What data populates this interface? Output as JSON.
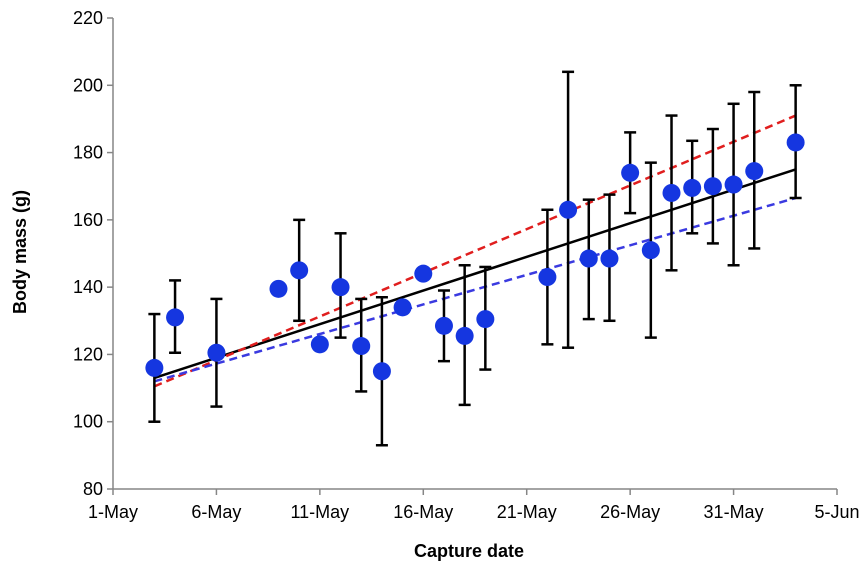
{
  "chart_data": {
    "type": "scatter",
    "title": "",
    "xlabel": "Capture date",
    "ylabel": "Body mass (g)",
    "x_ticks": [
      "1-May",
      "6-May",
      "11-May",
      "16-May",
      "21-May",
      "26-May",
      "31-May",
      "5-Jun"
    ],
    "x_tick_dates": [
      "2000-05-01",
      "2000-05-06",
      "2000-05-11",
      "2000-05-16",
      "2000-05-21",
      "2000-05-26",
      "2000-05-31",
      "2000-06-05"
    ],
    "xlim": [
      "2000-05-01",
      "2000-06-05"
    ],
    "y_ticks": [
      80,
      100,
      120,
      140,
      160,
      180,
      200,
      220
    ],
    "ylim": [
      80,
      220
    ],
    "grid": false,
    "legend": "none",
    "points": [
      {
        "date": "2000-05-03",
        "mean": 116,
        "lower": 100,
        "upper": 132
      },
      {
        "date": "2000-05-04",
        "mean": 131,
        "lower": 120.5,
        "upper": 142
      },
      {
        "date": "2000-05-06",
        "mean": 120.5,
        "lower": 104.5,
        "upper": 136.5
      },
      {
        "date": "2000-05-09",
        "mean": 139.5
      },
      {
        "date": "2000-05-10",
        "mean": 145,
        "lower": 130,
        "upper": 160
      },
      {
        "date": "2000-05-11",
        "mean": 123
      },
      {
        "date": "2000-05-12",
        "mean": 140,
        "lower": 125,
        "upper": 156
      },
      {
        "date": "2000-05-13",
        "mean": 122.5,
        "lower": 109,
        "upper": 136.5
      },
      {
        "date": "2000-05-14",
        "mean": 115,
        "lower": 93,
        "upper": 137
      },
      {
        "date": "2000-05-15",
        "mean": 134
      },
      {
        "date": "2000-05-16",
        "mean": 144
      },
      {
        "date": "2000-05-17",
        "mean": 128.5,
        "lower": 118,
        "upper": 139
      },
      {
        "date": "2000-05-18",
        "mean": 125.5,
        "lower": 105,
        "upper": 146.5
      },
      {
        "date": "2000-05-19",
        "mean": 130.5,
        "lower": 115.5,
        "upper": 146
      },
      {
        "date": "2000-05-22",
        "mean": 143,
        "lower": 123,
        "upper": 163
      },
      {
        "date": "2000-05-23",
        "mean": 163,
        "lower": 122,
        "upper": 204
      },
      {
        "date": "2000-05-24",
        "mean": 148.5,
        "lower": 130.5,
        "upper": 166
      },
      {
        "date": "2000-05-25",
        "mean": 148.5,
        "lower": 130,
        "upper": 167.5
      },
      {
        "date": "2000-05-26",
        "mean": 174,
        "lower": 162,
        "upper": 186
      },
      {
        "date": "2000-05-27",
        "mean": 151,
        "lower": 125,
        "upper": 177
      },
      {
        "date": "2000-05-28",
        "mean": 168,
        "lower": 145,
        "upper": 191
      },
      {
        "date": "2000-05-29",
        "mean": 169.5,
        "lower": 156,
        "upper": 183.5
      },
      {
        "date": "2000-05-30",
        "mean": 170,
        "lower": 153,
        "upper": 187
      },
      {
        "date": "2000-05-31",
        "mean": 170.5,
        "lower": 146.5,
        "upper": 194.5
      },
      {
        "date": "2000-06-01",
        "mean": 174.5,
        "lower": 151.5,
        "upper": 198
      },
      {
        "date": "2000-06-03",
        "mean": 183,
        "lower": 166.5,
        "upper": 200
      }
    ],
    "point_color": "#1536e0",
    "trend_lines": [
      {
        "style": "solid",
        "color": "#000000",
        "start": {
          "date": "2000-05-03",
          "value": 113
        },
        "end": {
          "date": "2000-06-03",
          "value": 175
        }
      },
      {
        "style": "dashed",
        "color": "#e01e1e",
        "start": {
          "date": "2000-05-03",
          "value": 110.5
        },
        "end": {
          "date": "2000-06-03",
          "value": 191
        }
      },
      {
        "style": "dashed",
        "color": "#3a3ae0",
        "start": {
          "date": "2000-05-03",
          "value": 112
        },
        "end": {
          "date": "2000-06-03",
          "value": 166.5
        }
      }
    ]
  }
}
